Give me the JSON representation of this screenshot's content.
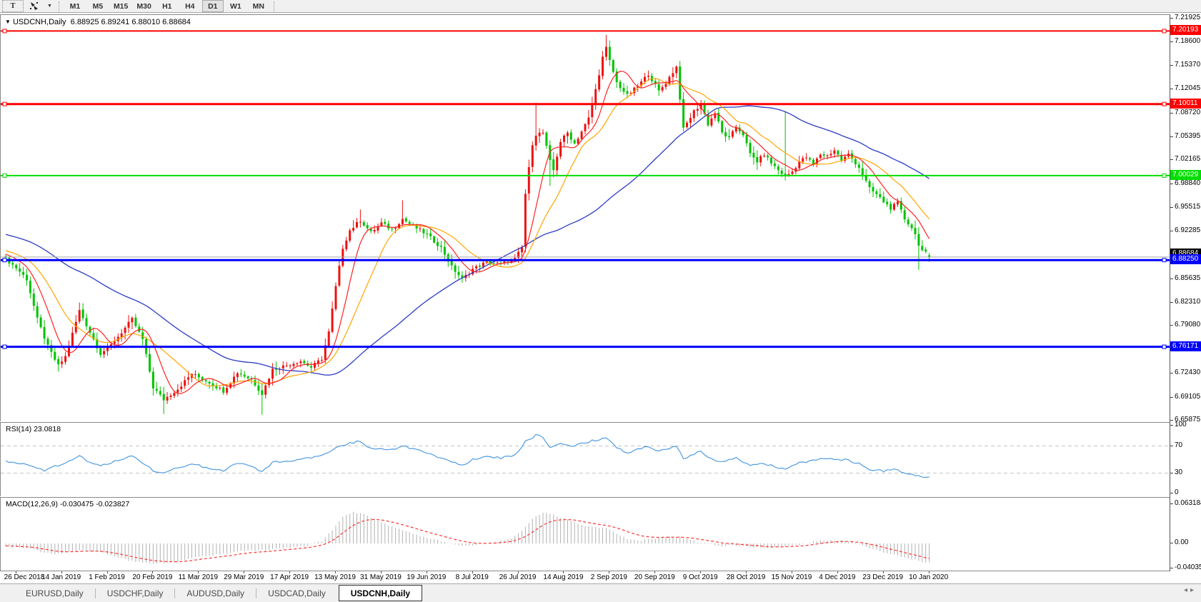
{
  "toolbar": {
    "text_tool_label": "T",
    "timeframes": [
      "M1",
      "M5",
      "M15",
      "M30",
      "H1",
      "H4",
      "D1",
      "W1",
      "MN"
    ],
    "active_timeframe": "D1"
  },
  "chart_title": {
    "symbol": "USDCNH,Daily",
    "open": "6.88925",
    "high": "6.89241",
    "low": "6.88010",
    "close": "6.88684"
  },
  "rsi_label": "RSI(14) 23.0818",
  "macd_label": "MACD(12,26,9) -0.030475 -0.023827",
  "tabs": {
    "items": [
      "EURUSD,Daily",
      "USDCHF,Daily",
      "AUDUSD,Daily",
      "USDCAD,Daily",
      "USDCNH,Daily"
    ],
    "active": "USDCNH,Daily"
  },
  "colors": {
    "candle_up": "#ee1111",
    "candle_down": "#00c200",
    "ma_fast": "#ff2222",
    "ma_mid": "#ffa500",
    "ma_slow": "#2b3cc4",
    "rsi_line": "#4f9be0",
    "macd_hist": "#b0b0b0",
    "macd_signal": "#ff3333",
    "current_price_line": "#a8a8a8",
    "current_price_label_bg": "#000000"
  },
  "chart_data": {
    "type": "candlestick",
    "symbol": "USDCNH",
    "period": "Daily",
    "current_ohlc": {
      "open": 6.88925,
      "high": 6.89241,
      "low": 6.8801,
      "close": 6.88684
    },
    "y_range": {
      "top": 7.21925,
      "bottom": 6.65875
    },
    "price_axis_ticks": [
      "7.21925",
      "7.18600",
      "7.15370",
      "7.12045",
      "7.08720",
      "7.05395",
      "7.02165",
      "6.98840",
      "6.95515",
      "6.92285",
      "6.85635",
      "6.82310",
      "6.79080",
      "6.72430",
      "6.69105",
      "6.65875"
    ],
    "date_labels": [
      "26 Dec 2018",
      "14 Jan 2019",
      "1 Feb 2019",
      "20 Feb 2019",
      "11 Mar 2019",
      "29 Mar 2019",
      "17 Apr 2019",
      "13 May 2019",
      "31 May 2019",
      "19 Jun 2019",
      "8 Jul 2019",
      "26 Jul 2019",
      "14 Aug 2019",
      "2 Sep 2019",
      "20 Sep 2019",
      "9 Oct 2019",
      "28 Oct 2019",
      "15 Nov 2019",
      "4 Dec 2019",
      "23 Dec 2019",
      "10 Jan 2020"
    ],
    "bars": 264,
    "horizontal_lines": [
      {
        "label": "7.20193",
        "value": 7.20193,
        "color": "#ff0000",
        "thickness": 2
      },
      {
        "label": "7.10011",
        "value": 7.10011,
        "color": "#ff0000",
        "thickness": 3
      },
      {
        "label": "7.00029",
        "value": 7.00029,
        "color": "#00dd00",
        "thickness": 2
      },
      {
        "label": "6.88250",
        "value": 6.8825,
        "color": "#0000ff",
        "thickness": 3
      },
      {
        "label": "6.76171",
        "value": 6.76171,
        "color": "#0000ff",
        "thickness": 3
      }
    ],
    "current_price_line": {
      "label": "6.88684",
      "value": 6.88684
    },
    "moving_averages": [
      {
        "name": "fast",
        "period": 8
      },
      {
        "name": "medium",
        "period": 17
      },
      {
        "name": "slow",
        "period": 55
      }
    ],
    "prehistory": {
      "bars": 60,
      "from": 6.958
    },
    "close_path_anchors": [
      [
        0,
        6.884
      ],
      [
        3,
        6.872
      ],
      [
        6,
        6.856
      ],
      [
        9,
        6.8
      ],
      [
        12,
        6.762
      ],
      [
        15,
        6.735
      ],
      [
        17,
        6.748
      ],
      [
        21,
        6.812
      ],
      [
        24,
        6.782
      ],
      [
        27,
        6.752
      ],
      [
        30,
        6.764
      ],
      [
        33,
        6.782
      ],
      [
        36,
        6.8
      ],
      [
        39,
        6.772
      ],
      [
        42,
        6.705
      ],
      [
        45,
        6.688
      ],
      [
        49,
        6.703
      ],
      [
        53,
        6.724
      ],
      [
        58,
        6.712
      ],
      [
        62,
        6.7
      ],
      [
        66,
        6.726
      ],
      [
        70,
        6.716
      ],
      [
        73,
        6.696
      ],
      [
        76,
        6.73
      ],
      [
        80,
        6.736
      ],
      [
        84,
        6.742
      ],
      [
        87,
        6.733
      ],
      [
        90,
        6.745
      ],
      [
        92,
        6.782
      ],
      [
        94,
        6.845
      ],
      [
        96,
        6.9
      ],
      [
        98,
        6.924
      ],
      [
        101,
        6.938
      ],
      [
        104,
        6.921
      ],
      [
        107,
        6.934
      ],
      [
        110,
        6.925
      ],
      [
        113,
        6.94
      ],
      [
        116,
        6.93
      ],
      [
        120,
        6.918
      ],
      [
        124,
        6.9
      ],
      [
        127,
        6.873
      ],
      [
        130,
        6.856
      ],
      [
        133,
        6.87
      ],
      [
        137,
        6.88
      ],
      [
        141,
        6.877
      ],
      [
        145,
        6.884
      ],
      [
        147,
        6.9
      ],
      [
        148,
        6.975
      ],
      [
        150,
        7.045
      ],
      [
        151,
        7.058
      ],
      [
        153,
        7.06
      ],
      [
        155,
        7.02
      ],
      [
        156,
        7.008
      ],
      [
        158,
        7.048
      ],
      [
        160,
        7.06
      ],
      [
        162,
        7.045
      ],
      [
        164,
        7.062
      ],
      [
        166,
        7.08
      ],
      [
        168,
        7.12
      ],
      [
        170,
        7.165
      ],
      [
        171,
        7.178
      ],
      [
        172,
        7.16
      ],
      [
        174,
        7.13
      ],
      [
        177,
        7.112
      ],
      [
        180,
        7.125
      ],
      [
        183,
        7.142
      ],
      [
        186,
        7.118
      ],
      [
        188,
        7.13
      ],
      [
        191,
        7.152
      ],
      [
        193,
        7.065
      ],
      [
        196,
        7.09
      ],
      [
        198,
        7.1
      ],
      [
        200,
        7.072
      ],
      [
        202,
        7.088
      ],
      [
        204,
        7.06
      ],
      [
        206,
        7.052
      ],
      [
        208,
        7.068
      ],
      [
        210,
        7.058
      ],
      [
        212,
        7.03
      ],
      [
        214,
        7.02
      ],
      [
        216,
        7.03
      ],
      [
        218,
        7.018
      ],
      [
        220,
        7.008
      ],
      [
        222,
        6.999
      ],
      [
        224,
        7.006
      ],
      [
        226,
        7.02
      ],
      [
        228,
        7.026
      ],
      [
        230,
        7.016
      ],
      [
        232,
        7.03
      ],
      [
        234,
        7.028
      ],
      [
        236,
        7.036
      ],
      [
        238,
        7.022
      ],
      [
        240,
        7.03
      ],
      [
        243,
        7.012
      ],
      [
        246,
        6.982
      ],
      [
        248,
        6.974
      ],
      [
        250,
        6.964
      ],
      [
        252,
        6.955
      ],
      [
        254,
        6.962
      ],
      [
        256,
        6.94
      ],
      [
        258,
        6.928
      ],
      [
        259,
        6.918
      ],
      [
        260,
        6.905
      ],
      [
        261,
        6.896
      ],
      [
        262,
        6.892
      ],
      [
        263,
        6.88684
      ]
    ],
    "spikes": [
      {
        "i": 45,
        "low": 6.668
      },
      {
        "i": 73,
        "low": 6.667
      },
      {
        "i": 101,
        "high": 6.953
      },
      {
        "i": 113,
        "high": 6.966
      },
      {
        "i": 151,
        "high": 7.102
      },
      {
        "i": 155,
        "low": 6.986
      },
      {
        "i": 171,
        "high": 7.1965
      },
      {
        "i": 222,
        "high": 7.09
      },
      {
        "i": 260,
        "low": 6.869
      }
    ],
    "last_bar": {
      "open": 6.88925,
      "high": 6.89241,
      "low": 6.8801,
      "close": 6.88684
    },
    "rsi": {
      "period": 14,
      "value": 23.0818,
      "levels": [
        70,
        30
      ],
      "axis_ticks": [
        "100",
        "70",
        "30",
        "0"
      ],
      "anchors": [
        [
          0,
          48
        ],
        [
          7,
          42
        ],
        [
          11,
          33
        ],
        [
          17,
          46
        ],
        [
          21,
          56
        ],
        [
          24,
          46
        ],
        [
          27,
          41
        ],
        [
          33,
          50
        ],
        [
          36,
          56
        ],
        [
          42,
          34
        ],
        [
          45,
          29
        ],
        [
          49,
          38
        ],
        [
          53,
          44
        ],
        [
          58,
          37
        ],
        [
          62,
          34
        ],
        [
          66,
          45
        ],
        [
          70,
          40
        ],
        [
          73,
          31
        ],
        [
          76,
          46
        ],
        [
          84,
          50
        ],
        [
          90,
          56
        ],
        [
          94,
          68
        ],
        [
          98,
          74
        ],
        [
          101,
          77
        ],
        [
          104,
          66
        ],
        [
          110,
          64
        ],
        [
          113,
          70
        ],
        [
          120,
          60
        ],
        [
          127,
          46
        ],
        [
          130,
          41
        ],
        [
          133,
          50
        ],
        [
          137,
          55
        ],
        [
          141,
          52
        ],
        [
          145,
          56
        ],
        [
          148,
          76
        ],
        [
          151,
          86
        ],
        [
          153,
          83
        ],
        [
          155,
          68
        ],
        [
          158,
          74
        ],
        [
          162,
          70
        ],
        [
          166,
          76
        ],
        [
          171,
          83
        ],
        [
          174,
          68
        ],
        [
          177,
          60
        ],
        [
          180,
          66
        ],
        [
          183,
          70
        ],
        [
          186,
          62
        ],
        [
          188,
          66
        ],
        [
          191,
          70
        ],
        [
          193,
          50
        ],
        [
          196,
          58
        ],
        [
          198,
          62
        ],
        [
          200,
          52
        ],
        [
          204,
          46
        ],
        [
          208,
          52
        ],
        [
          212,
          42
        ],
        [
          216,
          44
        ],
        [
          220,
          38
        ],
        [
          222,
          35
        ],
        [
          226,
          46
        ],
        [
          230,
          48
        ],
        [
          232,
          52
        ],
        [
          236,
          50
        ],
        [
          240,
          49
        ],
        [
          243,
          44
        ],
        [
          246,
          36
        ],
        [
          250,
          33
        ],
        [
          254,
          36
        ],
        [
          256,
          30
        ],
        [
          258,
          28
        ],
        [
          260,
          25
        ],
        [
          263,
          23.08
        ]
      ]
    },
    "macd": {
      "macd_value": -0.030475,
      "signal_value": -0.023827,
      "axis_ticks": [
        "0.063184",
        "0.00",
        "-0.040355"
      ],
      "y_top": 0.063184,
      "y_bottom": -0.040355,
      "anchors": [
        [
          0,
          -0.004
        ],
        [
          6,
          -0.007
        ],
        [
          10,
          -0.013
        ],
        [
          14,
          -0.017
        ],
        [
          18,
          -0.014
        ],
        [
          22,
          -0.01
        ],
        [
          26,
          -0.013
        ],
        [
          30,
          -0.019
        ],
        [
          34,
          -0.026
        ],
        [
          38,
          -0.03
        ],
        [
          42,
          -0.032
        ],
        [
          46,
          -0.031
        ],
        [
          50,
          -0.028
        ],
        [
          54,
          -0.022
        ],
        [
          58,
          -0.019
        ],
        [
          62,
          -0.017
        ],
        [
          66,
          -0.013
        ],
        [
          70,
          -0.012
        ],
        [
          74,
          -0.011
        ],
        [
          78,
          -0.008
        ],
        [
          82,
          -0.006
        ],
        [
          86,
          -0.003
        ],
        [
          90,
          0.004
        ],
        [
          93,
          0.022
        ],
        [
          96,
          0.042
        ],
        [
          99,
          0.05
        ],
        [
          102,
          0.048
        ],
        [
          105,
          0.04
        ],
        [
          108,
          0.032
        ],
        [
          111,
          0.025
        ],
        [
          114,
          0.02
        ],
        [
          117,
          0.014
        ],
        [
          120,
          0.009
        ],
        [
          124,
          0.004
        ],
        [
          128,
          -0.002
        ],
        [
          132,
          -0.004
        ],
        [
          136,
          0.0
        ],
        [
          140,
          0.003
        ],
        [
          144,
          0.008
        ],
        [
          147,
          0.02
        ],
        [
          150,
          0.04
        ],
        [
          153,
          0.05
        ],
        [
          156,
          0.046
        ],
        [
          159,
          0.04
        ],
        [
          162,
          0.034
        ],
        [
          165,
          0.028
        ],
        [
          168,
          0.026
        ],
        [
          171,
          0.024
        ],
        [
          174,
          0.016
        ],
        [
          177,
          0.008
        ],
        [
          180,
          0.004
        ],
        [
          184,
          0.007
        ],
        [
          188,
          0.011
        ],
        [
          192,
          0.01
        ],
        [
          196,
          0.004
        ],
        [
          200,
          -0.001
        ],
        [
          204,
          -0.004
        ],
        [
          208,
          -0.003
        ],
        [
          212,
          -0.005
        ],
        [
          216,
          -0.007
        ],
        [
          220,
          -0.006
        ],
        [
          224,
          -0.004
        ],
        [
          228,
          0.0
        ],
        [
          232,
          0.004
        ],
        [
          236,
          0.006
        ],
        [
          240,
          0.003
        ],
        [
          243,
          -0.002
        ],
        [
          246,
          -0.008
        ],
        [
          249,
          -0.013
        ],
        [
          252,
          -0.017
        ],
        [
          255,
          -0.021
        ],
        [
          258,
          -0.025
        ],
        [
          261,
          -0.029
        ],
        [
          263,
          -0.030475
        ]
      ]
    }
  }
}
